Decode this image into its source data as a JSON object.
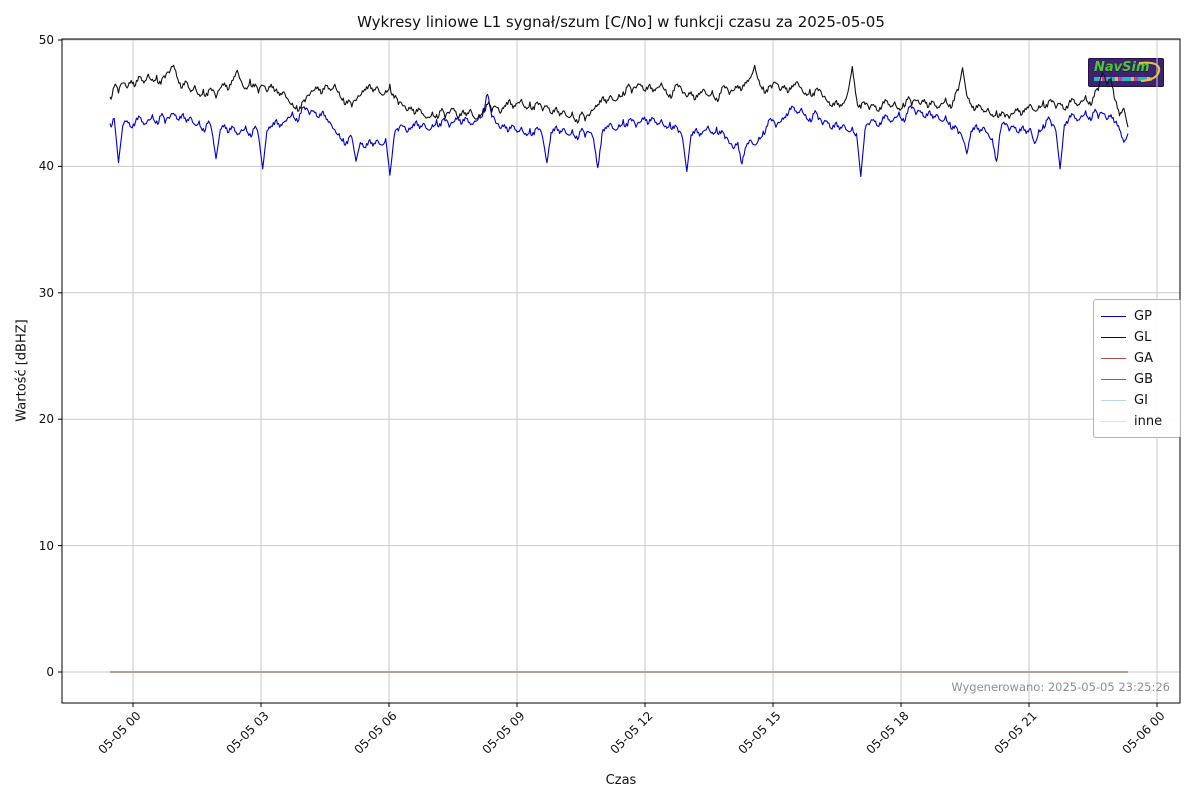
{
  "footer": {
    "generated_label": "Wygenerowano: 2025-05-05 23:25:26"
  },
  "watermark": {
    "text": "NavSim"
  },
  "chart_data": {
    "type": "line",
    "title": "Wykresy liniowe L1 sygnał/szum [C/No] w funkcji czasu za 2025-05-05",
    "xlabel": "Czas",
    "ylabel": "Wartość [dBHZ]",
    "x_ticks": [
      "05-05 00",
      "05-05 03",
      "05-05 06",
      "05-05 09",
      "05-05 12",
      "05-05 15",
      "05-05 18",
      "05-05 21",
      "05-06 00"
    ],
    "y_ticks": [
      0,
      10,
      20,
      30,
      40,
      50
    ],
    "ylim": [
      -2.5,
      50.3
    ],
    "grid": true,
    "legend_position": "right",
    "noise_amp": 0.32,
    "legend": {
      "entries": [
        {
          "label": "GP",
          "color": "#0000cd"
        },
        {
          "label": "GL",
          "color": "#111111"
        },
        {
          "label": "GA",
          "color": "#b04a4a"
        },
        {
          "label": "GB",
          "color": "#3a8a5a"
        },
        {
          "label": "GI",
          "color": "#b8d8e8"
        },
        {
          "label": "inne",
          "color": "#f5dcc0"
        }
      ]
    },
    "series": [
      {
        "name": "GP",
        "color": "#0000cd",
        "values": [
          43.4,
          43.8,
          40.3,
          43.2,
          43.6,
          43.1,
          43.5,
          43.9,
          43.3,
          43.7,
          44.1,
          43.6,
          44.0,
          43.4,
          43.8,
          44.2,
          43.7,
          44.1,
          43.5,
          43.9,
          43.3,
          43.6,
          43.0,
          43.4,
          42.8,
          40.6,
          42.9,
          43.3,
          42.7,
          43.1,
          42.5,
          42.9,
          43.2,
          42.6,
          43.0,
          42.4,
          39.8,
          42.8,
          43.2,
          43.6,
          43.1,
          43.5,
          43.9,
          44.3,
          43.8,
          44.2,
          44.5,
          44.1,
          44.4,
          43.9,
          44.3,
          43.7,
          43.4,
          42.9,
          42.6,
          42.2,
          41.8,
          42.3,
          40.4,
          41.9,
          41.5,
          42.0,
          41.6,
          42.1,
          41.7,
          42.2,
          39.3,
          42.4,
          42.8,
          43.2,
          42.7,
          43.1,
          43.5,
          43.0,
          43.4,
          42.9,
          43.3,
          43.7,
          43.2,
          43.6,
          43.1,
          43.5,
          43.9,
          43.4,
          43.8,
          43.3,
          43.6,
          44.0,
          44.3,
          45.7,
          43.9,
          43.4,
          43.0,
          43.3,
          42.8,
          43.2,
          42.7,
          43.1,
          42.6,
          43.0,
          42.5,
          42.9,
          42.3,
          40.3,
          42.7,
          43.1,
          42.6,
          43.0,
          42.5,
          42.9,
          42.4,
          42.8,
          42.3,
          42.7,
          42.2,
          39.9,
          42.6,
          43.0,
          43.4,
          42.9,
          43.3,
          43.7,
          43.2,
          43.6,
          43.1,
          43.5,
          43.9,
          43.4,
          43.8,
          43.3,
          43.7,
          43.2,
          43.5,
          43.0,
          42.7,
          42.2,
          39.6,
          42.5,
          42.9,
          42.4,
          42.8,
          43.2,
          42.7,
          43.1,
          42.6,
          42.2,
          41.8,
          41.4,
          41.9,
          40.2,
          41.6,
          42.1,
          41.7,
          42.3,
          42.8,
          43.2,
          43.6,
          43.1,
          43.5,
          43.9,
          44.3,
          44.7,
          44.2,
          44.6,
          44.1,
          43.8,
          44.2,
          43.7,
          43.3,
          43.6,
          43.0,
          43.4,
          42.9,
          43.3,
          42.8,
          43.1,
          42.6,
          39.2,
          42.9,
          43.3,
          43.7,
          43.2,
          43.6,
          44.0,
          43.5,
          43.9,
          44.3,
          43.8,
          44.2,
          44.6,
          44.1,
          44.4,
          43.9,
          44.3,
          43.8,
          44.1,
          43.6,
          44.0,
          43.5,
          43.0,
          42.6,
          42.2,
          41.0,
          42.8,
          43.2,
          42.7,
          43.1,
          42.6,
          42.2,
          40.4,
          42.9,
          43.3,
          42.8,
          43.2,
          42.7,
          43.1,
          42.6,
          43.0,
          41.8,
          42.9,
          43.3,
          43.7,
          43.2,
          42.8,
          39.8,
          43.3,
          43.7,
          44.1,
          43.6,
          44.0,
          44.4,
          43.9,
          44.3,
          43.8,
          44.2,
          43.7,
          44.1,
          43.5,
          42.9,
          41.9,
          42.6
        ]
      },
      {
        "name": "GL",
        "color": "#111111",
        "values": [
          45.5,
          46.3,
          45.8,
          46.6,
          46.2,
          46.8,
          46.4,
          47.1,
          46.6,
          47.3,
          46.9,
          47.2,
          46.5,
          47.0,
          47.4,
          48.0,
          46.9,
          46.2,
          46.7,
          45.9,
          46.4,
          45.7,
          46.1,
          45.6,
          46.0,
          45.4,
          46.2,
          46.6,
          46.1,
          46.8,
          47.6,
          46.7,
          46.2,
          46.9,
          46.3,
          45.8,
          46.4,
          45.9,
          46.5,
          46.0,
          45.6,
          45.9,
          45.3,
          45.0,
          44.8,
          44.6,
          45.1,
          45.6,
          46.0,
          46.3,
          45.8,
          46.4,
          46.0,
          46.5,
          45.9,
          45.4,
          45.0,
          44.7,
          45.2,
          45.6,
          46.1,
          46.4,
          45.9,
          46.3,
          45.7,
          46.0,
          46.5,
          45.4,
          44.9,
          44.8,
          44.4,
          44.7,
          44.2,
          44.5,
          44.0,
          43.9,
          44.3,
          44.1,
          44.4,
          43.8,
          44.2,
          44.6,
          43.9,
          44.3,
          44.0,
          44.5,
          43.8,
          44.1,
          44.6,
          44.9,
          44.3,
          44.7,
          44.2,
          44.8,
          45.2,
          44.6,
          45.0,
          45.3,
          44.7,
          45.1,
          44.5,
          44.9,
          44.4,
          44.8,
          44.2,
          44.6,
          44.0,
          44.4,
          43.9,
          44.3,
          43.7,
          44.1,
          43.6,
          44.0,
          44.5,
          44.9,
          45.4,
          45.0,
          45.6,
          45.2,
          45.7,
          45.9,
          46.3,
          45.8,
          46.2,
          46.5,
          46.0,
          46.4,
          45.9,
          46.2,
          46.6,
          46.1,
          45.7,
          46.0,
          46.3,
          45.8,
          45.5,
          45.9,
          45.3,
          45.7,
          46.1,
          45.6,
          46.0,
          45.4,
          45.8,
          46.2,
          45.7,
          46.0,
          46.4,
          46.1,
          46.6,
          47.0,
          48.0,
          46.8,
          46.3,
          45.9,
          46.2,
          46.6,
          46.0,
          46.4,
          45.9,
          46.3,
          46.7,
          46.2,
          45.8,
          46.1,
          45.6,
          46.0,
          45.5,
          45.2,
          44.8,
          45.1,
          44.7,
          45.0,
          45.9,
          47.9,
          45.4,
          44.6,
          44.9,
          44.5,
          44.9,
          44.4,
          44.8,
          45.2,
          44.7,
          45.1,
          44.6,
          45.0,
          45.3,
          44.8,
          45.2,
          44.9,
          45.3,
          44.7,
          45.1,
          44.6,
          45.0,
          45.4,
          44.9,
          45.2,
          46.0,
          47.8,
          45.6,
          44.9,
          44.5,
          44.8,
          44.3,
          44.6,
          44.1,
          44.4,
          44.0,
          43.9,
          43.8,
          44.2,
          44.6,
          44.1,
          44.5,
          44.9,
          44.4,
          44.8,
          45.2,
          44.7,
          45.1,
          44.6,
          45.0,
          44.5,
          44.9,
          45.3,
          44.8,
          45.2,
          45.6,
          45.1,
          45.5,
          46.0,
          47.4,
          46.5,
          47.0,
          45.2,
          44.0,
          44.6,
          43.1
        ]
      },
      {
        "name": "GA",
        "color": "#b04a4a",
        "values": [
          0,
          0
        ]
      },
      {
        "name": "GB",
        "color": "#3a8a5a",
        "values": [
          0,
          0
        ]
      },
      {
        "name": "GI",
        "color": "#b8d8e8",
        "values": [
          0,
          0
        ]
      },
      {
        "name": "inne",
        "color": "#f5dcc0",
        "values": [
          0,
          0
        ]
      }
    ]
  }
}
